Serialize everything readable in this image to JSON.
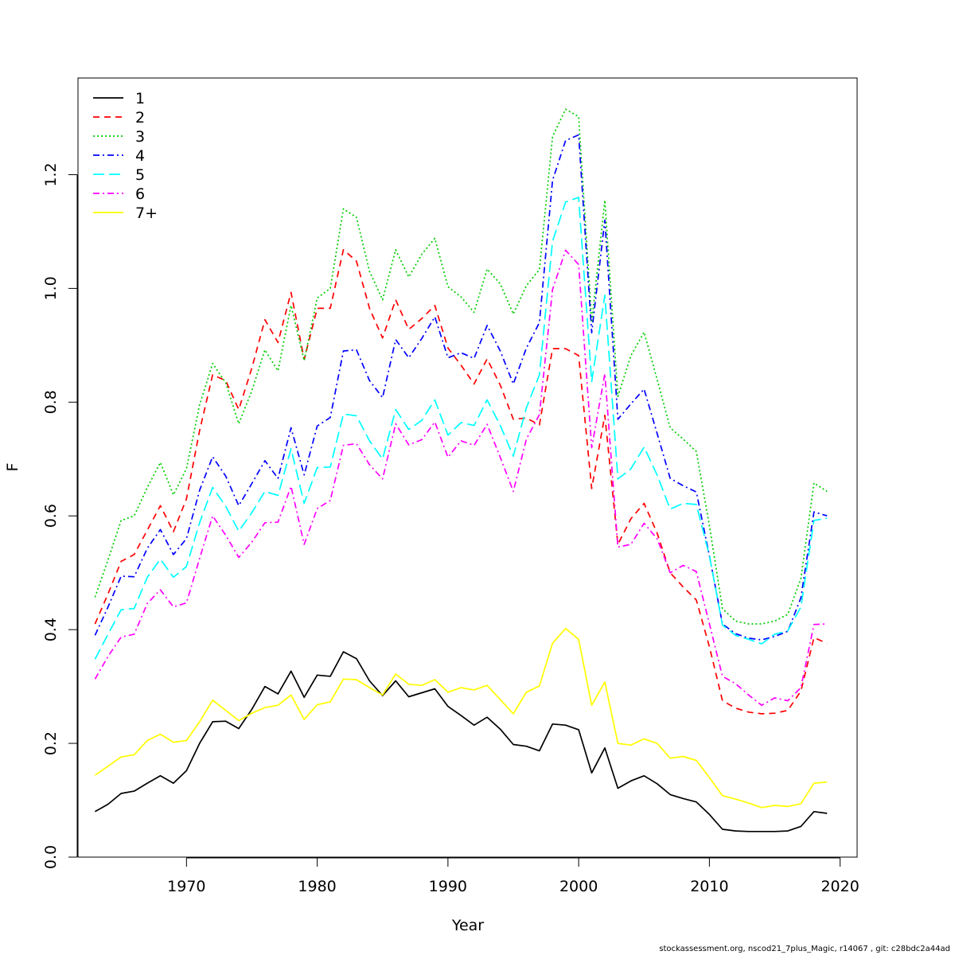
{
  "chart_data": {
    "type": "line",
    "xlabel": "Year",
    "ylabel": "F",
    "xlim": [
      1961.7,
      2021.3
    ],
    "ylim": [
      0.0,
      1.37
    ],
    "x_ticks": [
      1970,
      1980,
      1990,
      2000,
      2010,
      2020
    ],
    "y_ticks": [
      0.0,
      0.2,
      0.4,
      0.6,
      0.8,
      1.0,
      1.2
    ],
    "y_tick_labels": [
      "0.0",
      "0.2",
      "0.4",
      "0.6",
      "0.8",
      "1.0",
      "1.2"
    ],
    "x_tick_labels": [
      "1970",
      "1980",
      "1990",
      "2000",
      "2010",
      "2020"
    ],
    "legend_position": "top-left",
    "x": [
      1963,
      1964,
      1965,
      1966,
      1967,
      1968,
      1969,
      1970,
      1971,
      1972,
      1973,
      1974,
      1975,
      1976,
      1977,
      1978,
      1979,
      1980,
      1981,
      1982,
      1983,
      1984,
      1985,
      1986,
      1987,
      1988,
      1989,
      1990,
      1991,
      1992,
      1993,
      1994,
      1995,
      1996,
      1997,
      1998,
      1999,
      2000,
      2001,
      2002,
      2003,
      2004,
      2005,
      2006,
      2007,
      2008,
      2009,
      2010,
      2011,
      2012,
      2013,
      2014,
      2015,
      2016,
      2017,
      2018,
      2019
    ],
    "series": [
      {
        "name": "1",
        "color": "#000000",
        "dash": "solid",
        "values": [
          0.08,
          0.093,
          0.112,
          0.116,
          0.13,
          0.143,
          0.13,
          0.152,
          0.2,
          0.238,
          0.239,
          0.226,
          0.26,
          0.3,
          0.287,
          0.327,
          0.281,
          0.32,
          0.318,
          0.361,
          0.349,
          0.31,
          0.284,
          0.31,
          0.282,
          0.289,
          0.296,
          0.265,
          0.249,
          0.232,
          0.246,
          0.225,
          0.198,
          0.195,
          0.187,
          0.234,
          0.232,
          0.224,
          0.148,
          0.192,
          0.121,
          0.134,
          0.143,
          0.129,
          0.11,
          0.103,
          0.097,
          0.075,
          0.049,
          0.046,
          0.045,
          0.045,
          0.045,
          0.046,
          0.054,
          0.08,
          0.077
        ]
      },
      {
        "name": "2",
        "color": "#ff0000",
        "dash": "8,6",
        "values": [
          0.41,
          0.463,
          0.52,
          0.532,
          0.575,
          0.618,
          0.572,
          0.63,
          0.75,
          0.848,
          0.838,
          0.787,
          0.86,
          0.945,
          0.905,
          0.993,
          0.875,
          0.965,
          0.965,
          1.068,
          1.048,
          0.965,
          0.913,
          0.98,
          0.928,
          0.947,
          0.97,
          0.895,
          0.865,
          0.832,
          0.876,
          0.83,
          0.77,
          0.772,
          0.76,
          0.894,
          0.894,
          0.882,
          0.648,
          0.777,
          0.55,
          0.595,
          0.622,
          0.57,
          0.5,
          0.475,
          0.452,
          0.37,
          0.275,
          0.262,
          0.255,
          0.252,
          0.253,
          0.258,
          0.292,
          0.386,
          0.376
        ]
      },
      {
        "name": "3",
        "color": "#00cd00",
        "dash": "2,3",
        "values": [
          0.457,
          0.523,
          0.592,
          0.6,
          0.65,
          0.694,
          0.637,
          0.683,
          0.795,
          0.868,
          0.834,
          0.762,
          0.82,
          0.892,
          0.855,
          0.97,
          0.873,
          0.983,
          1.0,
          1.14,
          1.125,
          1.03,
          0.98,
          1.068,
          1.02,
          1.06,
          1.088,
          1.003,
          0.985,
          0.958,
          1.034,
          1.008,
          0.955,
          1.005,
          1.033,
          1.267,
          1.315,
          1.302,
          0.94,
          1.155,
          0.81,
          0.882,
          0.923,
          0.84,
          0.755,
          0.735,
          0.713,
          0.583,
          0.437,
          0.415,
          0.41,
          0.41,
          0.415,
          0.427,
          0.49,
          0.658,
          0.643
        ]
      },
      {
        "name": "4",
        "color": "#0000ff",
        "dash": "8,4,2,4",
        "values": [
          0.39,
          0.44,
          0.494,
          0.493,
          0.543,
          0.576,
          0.532,
          0.56,
          0.645,
          0.704,
          0.67,
          0.618,
          0.657,
          0.697,
          0.666,
          0.755,
          0.672,
          0.758,
          0.773,
          0.89,
          0.892,
          0.838,
          0.808,
          0.91,
          0.878,
          0.912,
          0.95,
          0.878,
          0.887,
          0.877,
          0.935,
          0.89,
          0.832,
          0.895,
          0.94,
          1.19,
          1.26,
          1.27,
          0.922,
          1.12,
          0.77,
          0.797,
          0.823,
          0.745,
          0.666,
          0.653,
          0.642,
          0.53,
          0.41,
          0.393,
          0.385,
          0.382,
          0.388,
          0.397,
          0.456,
          0.607,
          0.6
        ]
      },
      {
        "name": "5",
        "color": "#00ffff",
        "dash": "14,6",
        "values": [
          0.348,
          0.392,
          0.435,
          0.437,
          0.492,
          0.524,
          0.492,
          0.511,
          0.588,
          0.65,
          0.617,
          0.573,
          0.606,
          0.643,
          0.636,
          0.718,
          0.622,
          0.685,
          0.686,
          0.779,
          0.776,
          0.732,
          0.7,
          0.787,
          0.752,
          0.768,
          0.804,
          0.742,
          0.764,
          0.759,
          0.804,
          0.759,
          0.705,
          0.79,
          0.848,
          1.083,
          1.152,
          1.16,
          0.836,
          0.988,
          0.665,
          0.683,
          0.721,
          0.672,
          0.612,
          0.622,
          0.62,
          0.53,
          0.408,
          0.39,
          0.383,
          0.375,
          0.392,
          0.398,
          0.44,
          0.592,
          0.596
        ]
      },
      {
        "name": "6",
        "color": "#ff00ff",
        "dash": "8,4,2,4",
        "values": [
          0.313,
          0.353,
          0.387,
          0.392,
          0.446,
          0.47,
          0.44,
          0.447,
          0.525,
          0.6,
          0.566,
          0.527,
          0.554,
          0.588,
          0.589,
          0.652,
          0.55,
          0.613,
          0.627,
          0.724,
          0.727,
          0.69,
          0.665,
          0.762,
          0.725,
          0.734,
          0.765,
          0.703,
          0.732,
          0.724,
          0.761,
          0.703,
          0.643,
          0.735,
          0.778,
          0.998,
          1.067,
          1.042,
          0.72,
          0.85,
          0.545,
          0.55,
          0.587,
          0.56,
          0.5,
          0.513,
          0.502,
          0.41,
          0.318,
          0.305,
          0.285,
          0.267,
          0.28,
          0.275,
          0.298,
          0.409,
          0.41
        ]
      },
      {
        "name": "7+",
        "color": "#ffff00",
        "dash": "solid",
        "values": [
          0.144,
          0.16,
          0.176,
          0.18,
          0.205,
          0.216,
          0.202,
          0.205,
          0.238,
          0.276,
          0.258,
          0.24,
          0.253,
          0.263,
          0.267,
          0.285,
          0.242,
          0.268,
          0.273,
          0.313,
          0.312,
          0.298,
          0.285,
          0.322,
          0.304,
          0.302,
          0.312,
          0.29,
          0.298,
          0.294,
          0.302,
          0.277,
          0.252,
          0.29,
          0.301,
          0.376,
          0.402,
          0.383,
          0.267,
          0.308,
          0.2,
          0.197,
          0.208,
          0.2,
          0.174,
          0.177,
          0.17,
          0.14,
          0.108,
          0.102,
          0.095,
          0.087,
          0.091,
          0.089,
          0.094,
          0.13,
          0.132
        ]
      }
    ]
  },
  "footer_text": "stockassessment.org, nscod21_7plus_Magic, r14067 , git: c28bdc2a44ad"
}
